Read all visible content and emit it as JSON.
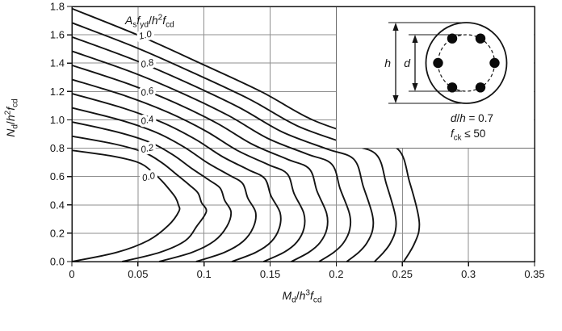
{
  "chart_data": {
    "type": "line",
    "description": "Column design interaction chart for a circular reinforced concrete section",
    "xlabel_parts": [
      {
        "t": "M",
        "i": 1
      },
      {
        "t": "d",
        "sub": 1
      },
      {
        "t": "/"
      },
      {
        "t": "h",
        "i": 1
      },
      {
        "t": "3",
        "sup": 1
      },
      {
        "t": "f",
        "i": 1
      },
      {
        "t": "cd",
        "sub": 1
      }
    ],
    "ylabel_parts": [
      {
        "t": "N",
        "i": 1
      },
      {
        "t": "d",
        "sub": 1
      },
      {
        "t": "/"
      },
      {
        "t": "h",
        "i": 1
      },
      {
        "t": "2",
        "sup": 1
      },
      {
        "t": "f",
        "i": 1
      },
      {
        "t": "cd",
        "sub": 1
      }
    ],
    "family_label_parts": [
      {
        "t": "A",
        "i": 1
      },
      {
        "t": "s",
        "sub": 1
      },
      {
        "t": "f",
        "i": 1
      },
      {
        "t": "yd",
        "sub": 1
      },
      {
        "t": "/"
      },
      {
        "t": "h",
        "i": 1
      },
      {
        "t": "2",
        "sup": 1
      },
      {
        "t": "f",
        "i": 1
      },
      {
        "t": "cd",
        "sub": 1
      }
    ],
    "xlim": [
      0,
      0.35
    ],
    "ylim": [
      0,
      1.8
    ],
    "grid": true,
    "x_ticks": [
      {
        "v": 0,
        "label": "0"
      },
      {
        "v": 0.05,
        "label": "0.05"
      },
      {
        "v": 0.1,
        "label": "0.1"
      },
      {
        "v": 0.15,
        "label": "0.15"
      },
      {
        "v": 0.2,
        "label": "0.2"
      },
      {
        "v": 0.25,
        "label": "0.25"
      },
      {
        "v": 0.3,
        "label": "0.3"
      },
      {
        "v": 0.35,
        "label": "0.35"
      }
    ],
    "y_ticks": [
      {
        "v": 0,
        "label": "0.0"
      },
      {
        "v": 0.2,
        "label": "0.2"
      },
      {
        "v": 0.4,
        "label": "0.4"
      },
      {
        "v": 0.6,
        "label": "0.6"
      },
      {
        "v": 0.8,
        "label": "0.8"
      },
      {
        "v": 1.0,
        "label": "1.0"
      },
      {
        "v": 1.2,
        "label": "1.2"
      },
      {
        "v": 1.4,
        "label": "1.4"
      },
      {
        "v": 1.6,
        "label": "1.6"
      },
      {
        "v": 1.8,
        "label": "1.8"
      }
    ],
    "curve_labels": [
      {
        "text": "1.0",
        "m": 0.056,
        "n": 1.6
      },
      {
        "text": "0.8",
        "m": 0.0575,
        "n": 1.4
      },
      {
        "text": "0.6",
        "m": 0.0575,
        "n": 1.2
      },
      {
        "text": "0.4",
        "m": 0.0575,
        "n": 1.0
      },
      {
        "text": "0.2",
        "m": 0.0575,
        "n": 0.8
      },
      {
        "text": "0.0",
        "m": 0.0585,
        "n": 0.6
      }
    ],
    "series": [
      {
        "name": "0.0",
        "points": [
          [
            0,
            0.785
          ],
          [
            0.03,
            0.745
          ],
          [
            0.05,
            0.7
          ],
          [
            0.06,
            0.64
          ],
          [
            0.068,
            0.57
          ],
          [
            0.0745,
            0.5
          ],
          [
            0.0785,
            0.45
          ],
          [
            0.0806,
            0.4
          ],
          [
            0.081,
            0.355
          ],
          [
            0.073,
            0.255
          ],
          [
            0.058,
            0.15
          ],
          [
            0.034,
            0.065
          ],
          [
            0,
            0
          ]
        ]
      },
      {
        "name": "0.1",
        "points": [
          [
            0,
            0.885
          ],
          [
            0.0322,
            0.8295
          ],
          [
            0.0547,
            0.77
          ],
          [
            0.0683,
            0.696
          ],
          [
            0.0794,
            0.613
          ],
          [
            0.0893,
            0.537
          ],
          [
            0.0954,
            0.484
          ],
          [
            0.0981,
            0.416
          ],
          [
            0.1017,
            0.3525
          ],
          [
            0.0946,
            0.251
          ],
          [
            0.0858,
            0.1475
          ],
          [
            0.0665,
            0.065
          ],
          [
            0.038,
            0
          ]
        ]
      },
      {
        "name": "0.2",
        "points": [
          [
            0,
            0.985
          ],
          [
            0.0344,
            0.914
          ],
          [
            0.0594,
            0.84
          ],
          [
            0.0766,
            0.752
          ],
          [
            0.0908,
            0.656
          ],
          [
            0.104,
            0.574
          ],
          [
            0.1122,
            0.518
          ],
          [
            0.1156,
            0.432
          ],
          [
            0.1204,
            0.35
          ],
          [
            0.1172,
            0.247
          ],
          [
            0.1077,
            0.145
          ],
          [
            0.0909,
            0.065
          ],
          [
            0.066,
            0
          ]
        ]
      },
      {
        "name": "0.3",
        "points": [
          [
            0,
            1.085
          ],
          [
            0.0366,
            0.9985
          ],
          [
            0.0641,
            0.91
          ],
          [
            0.0849,
            0.808
          ],
          [
            0.1022,
            0.699
          ],
          [
            0.1188,
            0.611
          ],
          [
            0.1291,
            0.552
          ],
          [
            0.1331,
            0.448
          ],
          [
            0.139,
            0.3475
          ],
          [
            0.1373,
            0.243
          ],
          [
            0.1295,
            0.1425
          ],
          [
            0.1154,
            0.065
          ],
          [
            0.094,
            0
          ]
        ]
      },
      {
        "name": "0.4",
        "points": [
          [
            0,
            1.185
          ],
          [
            0.0388,
            1.083
          ],
          [
            0.0688,
            0.98
          ],
          [
            0.0932,
            0.864
          ],
          [
            0.1136,
            0.742
          ],
          [
            0.1335,
            0.648
          ],
          [
            0.1459,
            0.586
          ],
          [
            0.1506,
            0.464
          ],
          [
            0.1575,
            0.345
          ],
          [
            0.157,
            0.239
          ],
          [
            0.1508,
            0.14
          ],
          [
            0.1391,
            0.065
          ],
          [
            0.121,
            0
          ]
        ]
      },
      {
        "name": "0.5",
        "points": [
          [
            0,
            1.285
          ],
          [
            0.041,
            1.1675
          ],
          [
            0.0735,
            1.05
          ],
          [
            0.1015,
            0.92
          ],
          [
            0.125,
            0.785
          ],
          [
            0.1483,
            0.685
          ],
          [
            0.1628,
            0.62
          ],
          [
            0.1681,
            0.48
          ],
          [
            0.1754,
            0.3425
          ],
          [
            0.1756,
            0.235
          ],
          [
            0.1702,
            0.1375
          ],
          [
            0.1604,
            0.065
          ],
          [
            0.145,
            0
          ]
        ]
      },
      {
        "name": "0.6",
        "points": [
          [
            0,
            1.385
          ],
          [
            0.0432,
            1.252
          ],
          [
            0.0782,
            1.12
          ],
          [
            0.1098,
            0.976
          ],
          [
            0.1364,
            0.828
          ],
          [
            0.163,
            0.722
          ],
          [
            0.1796,
            0.654
          ],
          [
            0.1855,
            0.496
          ],
          [
            0.1927,
            0.34
          ],
          [
            0.1929,
            0.231
          ],
          [
            0.1878,
            0.135
          ],
          [
            0.1792,
            0.065
          ],
          [
            0.166,
            0
          ]
        ]
      },
      {
        "name": "0.7",
        "points": [
          [
            0,
            1.485
          ],
          [
            0.0454,
            1.3365
          ],
          [
            0.0829,
            1.19
          ],
          [
            0.1181,
            1.032
          ],
          [
            0.1478,
            0.871
          ],
          [
            0.1778,
            0.759
          ],
          [
            0.1965,
            0.688
          ],
          [
            0.203,
            0.512
          ],
          [
            0.21,
            0.3375
          ],
          [
            0.2102,
            0.227
          ],
          [
            0.2055,
            0.1325
          ],
          [
            0.1981,
            0.065
          ],
          [
            0.187,
            0
          ]
        ]
      },
      {
        "name": "0.8",
        "points": [
          [
            0,
            1.585
          ],
          [
            0.0476,
            1.421
          ],
          [
            0.0876,
            1.26
          ],
          [
            0.1264,
            1.088
          ],
          [
            0.1592,
            0.914
          ],
          [
            0.1925,
            0.796
          ],
          [
            0.2133,
            0.722
          ],
          [
            0.2205,
            0.528
          ],
          [
            0.2272,
            0.335
          ],
          [
            0.2275,
            0.223
          ],
          [
            0.2231,
            0.13
          ],
          [
            0.217,
            0.065
          ],
          [
            0.208,
            0
          ]
        ]
      },
      {
        "name": "0.9",
        "points": [
          [
            0,
            1.685
          ],
          [
            0.0498,
            1.5055
          ],
          [
            0.0923,
            1.33
          ],
          [
            0.1347,
            1.144
          ],
          [
            0.1706,
            0.957
          ],
          [
            0.2073,
            0.833
          ],
          [
            0.2302,
            0.756
          ],
          [
            0.238,
            0.544
          ],
          [
            0.2445,
            0.3325
          ],
          [
            0.2448,
            0.219
          ],
          [
            0.2408,
            0.1275
          ],
          [
            0.2358,
            0.065
          ],
          [
            0.229,
            0
          ]
        ]
      },
      {
        "name": "1.0",
        "points": [
          [
            0,
            1.785
          ],
          [
            0.052,
            1.59
          ],
          [
            0.097,
            1.4
          ],
          [
            0.143,
            1.2
          ],
          [
            0.182,
            1
          ],
          [
            0.222,
            0.87
          ],
          [
            0.247,
            0.79
          ],
          [
            0.2555,
            0.56
          ],
          [
            0.262,
            0.33
          ],
          [
            0.2625,
            0.215
          ],
          [
            0.259,
            0.125
          ],
          [
            0.2555,
            0.065
          ],
          [
            0.251,
            0
          ]
        ]
      }
    ],
    "inset": {
      "caption1_parts": [
        {
          "t": "d",
          "i": 1
        },
        {
          "t": "/"
        },
        {
          "t": "h",
          "i": 1
        },
        {
          "t": " = 0.7"
        }
      ],
      "caption2_parts": [
        {
          "t": "f",
          "i": 1
        },
        {
          "t": "ck",
          "sub": 1
        },
        {
          "t": " ≤ 50"
        }
      ],
      "outer_dim_label": "h",
      "inner_dim_label": "d",
      "d_over_h": 0.7,
      "rebar_count": 6,
      "rebar_angles_deg": [
        0,
        60,
        120,
        180,
        240,
        300
      ]
    },
    "colors": {
      "background": "#ffffff",
      "curve": "#141414",
      "grid": "#8f8f8f",
      "axis": "#141414",
      "inset_border": "#6b6b6b"
    },
    "legend_position": "none"
  }
}
